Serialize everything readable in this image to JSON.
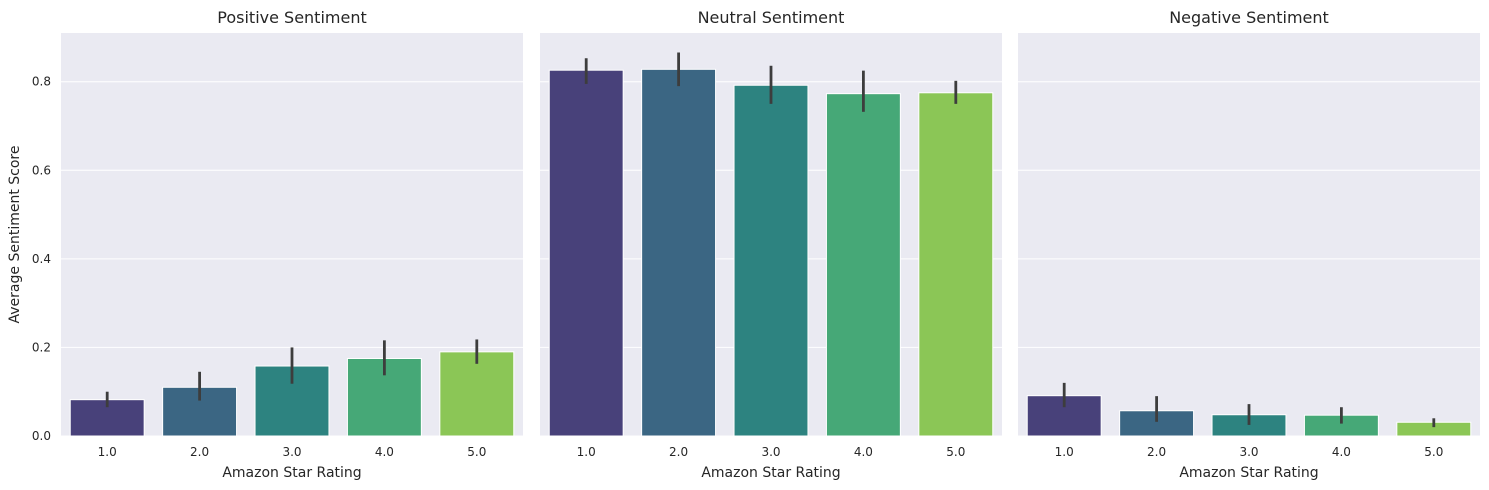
{
  "chart_data": {
    "type": "bar",
    "categories": [
      "1.0",
      "2.0",
      "3.0",
      "4.0",
      "5.0"
    ],
    "xlabel": "Amazon Star Rating",
    "ylabel": "Average Sentiment Score",
    "ylim": [
      0,
      0.91
    ],
    "yticks": [
      "0.0",
      "0.2",
      "0.4",
      "0.6",
      "0.8"
    ],
    "grid": true,
    "colors": [
      "#48417a",
      "#3b6683",
      "#2d8380",
      "#46a877",
      "#8bc656"
    ],
    "panels": [
      {
        "title": "Positive Sentiment",
        "values": [
          0.082,
          0.11,
          0.158,
          0.175,
          0.19
        ],
        "err_low": [
          0.065,
          0.08,
          0.118,
          0.137,
          0.163
        ],
        "err_high": [
          0.1,
          0.145,
          0.2,
          0.216,
          0.218
        ]
      },
      {
        "title": "Neutral Sentiment",
        "values": [
          0.826,
          0.828,
          0.792,
          0.773,
          0.775
        ],
        "err_low": [
          0.795,
          0.79,
          0.75,
          0.732,
          0.75
        ],
        "err_high": [
          0.853,
          0.866,
          0.836,
          0.825,
          0.802
        ]
      },
      {
        "title": "Negative Sentiment",
        "values": [
          0.091,
          0.057,
          0.048,
          0.047,
          0.031
        ],
        "err_low": [
          0.065,
          0.032,
          0.025,
          0.028,
          0.02
        ],
        "err_high": [
          0.12,
          0.09,
          0.072,
          0.065,
          0.04
        ]
      }
    ]
  }
}
